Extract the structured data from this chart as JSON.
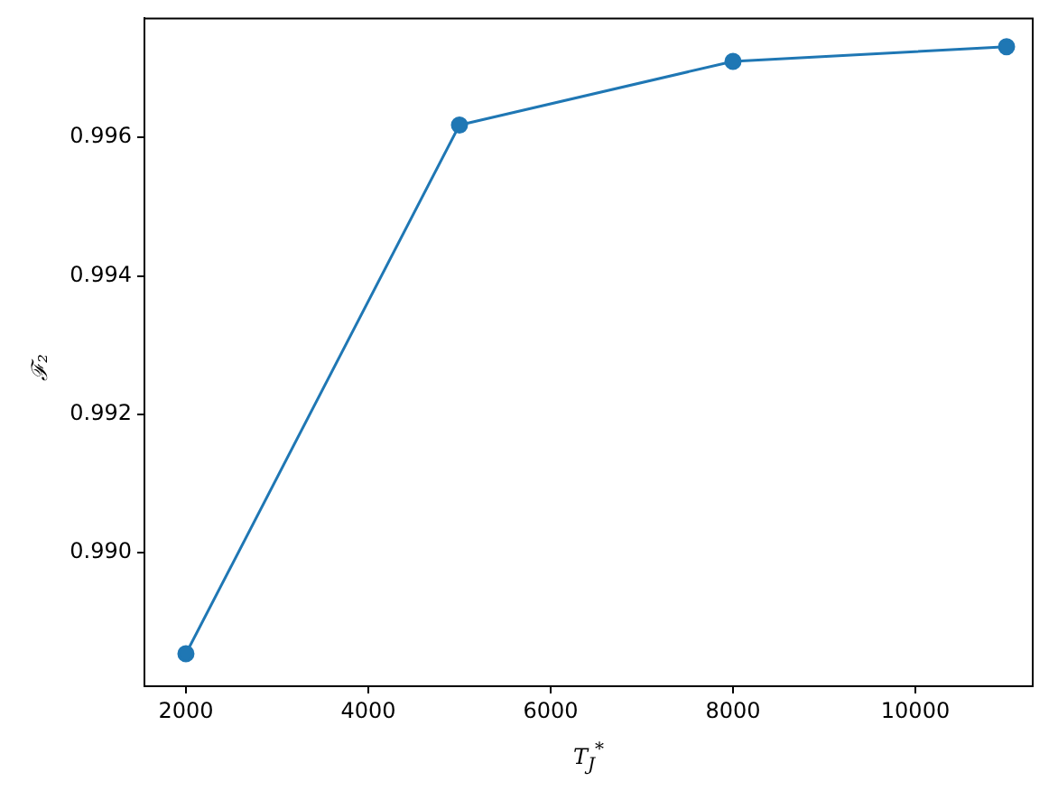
{
  "chart_data": {
    "type": "line",
    "xlabel": "T$_{J}$$^{*}$",
    "ylabel": "ℱ₂",
    "x": [
      2000,
      5000,
      8000,
      11000
    ],
    "series": [
      {
        "color": "#1f77b4",
        "values": [
          0.98854,
          0.99618,
          0.9971,
          0.99731
        ]
      }
    ],
    "marker": "circle",
    "line_style": "solid",
    "grid": false,
    "legend": false,
    "xlim": [
      1545,
      11287
    ],
    "xticks": [
      2000,
      4000,
      6000,
      8000,
      10000
    ],
    "ylim": [
      0.98807,
      0.99772
    ],
    "yticks": [
      {
        "value": 0.99,
        "label": "0.990"
      },
      {
        "value": 0.992,
        "label": "0.992"
      },
      {
        "value": 0.994,
        "label": "0.994"
      },
      {
        "value": 0.996,
        "label": "0.996"
      }
    ]
  }
}
